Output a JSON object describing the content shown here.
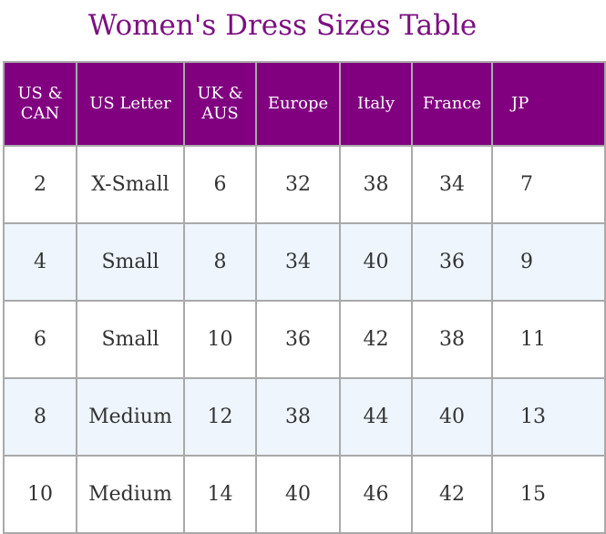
{
  "title": "Women's Dress Sizes Table",
  "table": {
    "headers": [
      "US & CAN",
      "US Letter",
      "UK & AUS",
      "Europe",
      "Italy",
      "France",
      "JP"
    ],
    "rows": [
      [
        "2",
        "X-Small",
        "6",
        "32",
        "38",
        "34",
        "7"
      ],
      [
        "4",
        "Small",
        "8",
        "34",
        "40",
        "36",
        "9"
      ],
      [
        "6",
        "Small",
        "10",
        "36",
        "42",
        "38",
        "11"
      ],
      [
        "8",
        "Medium",
        "12",
        "38",
        "44",
        "40",
        "13"
      ],
      [
        "10",
        "Medium",
        "14",
        "40",
        "46",
        "42",
        "15"
      ]
    ]
  },
  "colors": {
    "title": "#7b1180",
    "header_bg": "#800080",
    "header_text": "#ffffff",
    "row_alt_bg": "#eef5fd",
    "border": "#a9a9a9"
  }
}
